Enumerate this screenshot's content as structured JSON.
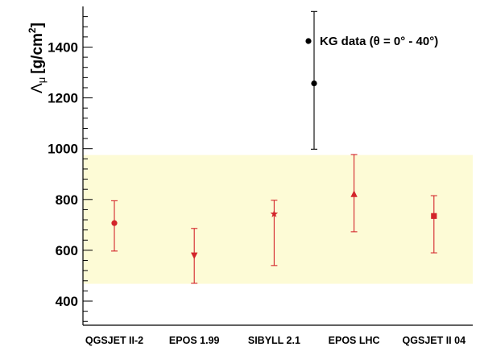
{
  "chart_data": {
    "type": "scatter",
    "title": "",
    "ylabel_prefix": "Λ",
    "ylabel_sub": "μ",
    "ylabel_unit": "[g/cm",
    "ylabel_sup": "2",
    "ylabel_close": "]",
    "ylim": [
      305,
      1560
    ],
    "yticks": [
      400,
      600,
      800,
      1000,
      1200,
      1400
    ],
    "ytick_labels": [
      "400",
      "600",
      "800",
      "1000",
      "1200",
      "1400"
    ],
    "grid": false,
    "categories": [
      "QGSJET II-2",
      "EPOS 1.99",
      "SIBYLL 2.1",
      "EPOS LHC",
      "QGSJET II 04"
    ],
    "band": {
      "low": 468,
      "high": 975,
      "color": "#fdfbd6"
    },
    "legend": {
      "position": "top-right",
      "label": "KG data (θ = 0° - 40°)"
    },
    "colors": {
      "model": "#d3252b",
      "data": "#000000",
      "axis": "#000000"
    },
    "series": [
      {
        "kind": "model",
        "points": [
          {
            "category": "QGSJET II-2",
            "y": 707,
            "low": 597,
            "high": 795,
            "marker": "circle"
          },
          {
            "category": "EPOS 1.99",
            "y": 578,
            "low": 470,
            "high": 686,
            "marker": "triangle-down"
          },
          {
            "category": "SIBYLL 2.1",
            "y": 743,
            "low": 540,
            "high": 797,
            "marker": "star"
          },
          {
            "category": "EPOS LHC",
            "y": 823,
            "low": 673,
            "high": 977,
            "marker": "triangle-up"
          },
          {
            "category": "QGSJET II 04",
            "y": 735,
            "low": 590,
            "high": 815,
            "marker": "square"
          }
        ]
      },
      {
        "kind": "data",
        "name": "KG data (θ = 0° - 40°)",
        "points": [
          {
            "position": 2.5,
            "y": 1257,
            "low": 998,
            "high": 1540,
            "marker": "circle"
          }
        ]
      }
    ]
  }
}
